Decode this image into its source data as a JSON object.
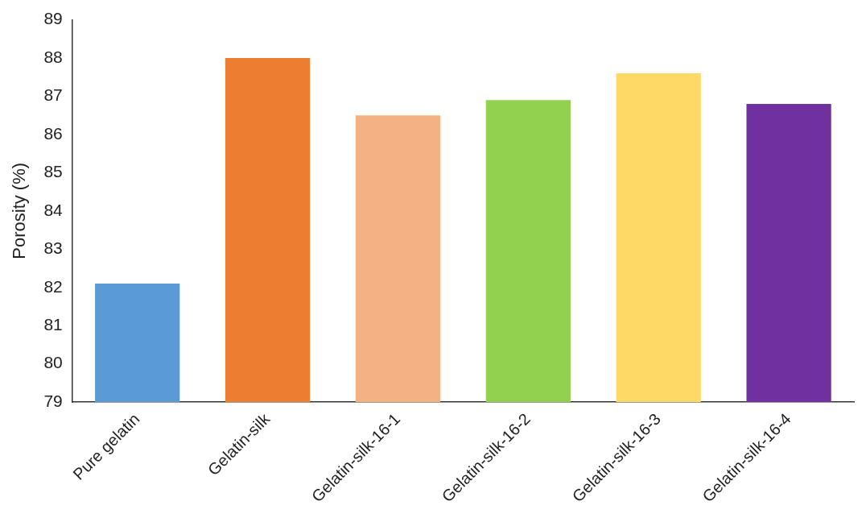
{
  "chart_data": {
    "type": "bar",
    "ylabel": "Porosity (%)",
    "categories": [
      "Pure gelatin",
      "Gelatin-silk",
      "Gelatin-silk-16-1",
      "Gelatin-silk-16-2",
      "Gelatin-silk-16-3",
      "Gelatin-silk-16-4"
    ],
    "values": [
      82.1,
      88.0,
      86.5,
      86.9,
      87.6,
      86.8
    ],
    "colors": [
      "#5b9bd5",
      "#ed7d31",
      "#f4b183",
      "#92d050",
      "#ffd966",
      "#7030a0"
    ],
    "ylim": [
      79,
      89
    ],
    "yticks": [
      79,
      80,
      81,
      82,
      83,
      84,
      85,
      86,
      87,
      88,
      89
    ],
    "grid": false,
    "legend": false
  }
}
